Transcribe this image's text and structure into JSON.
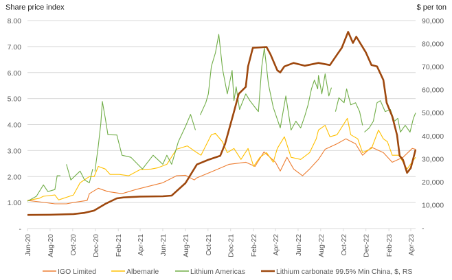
{
  "chart_data": {
    "type": "line",
    "left_axis_title": "Share price index",
    "right_axis_title": "$ per ton",
    "x_domain": [
      "2020-06-01",
      "2023-04-14"
    ],
    "x_ticks": [
      {
        "date": "2020-06-01",
        "label": "Jun-20"
      },
      {
        "date": "2020-08-01",
        "label": "Aug-20"
      },
      {
        "date": "2020-10-01",
        "label": "Oct-20"
      },
      {
        "date": "2020-12-01",
        "label": "Dec-20"
      },
      {
        "date": "2021-02-01",
        "label": "Feb-21"
      },
      {
        "date": "2021-04-01",
        "label": "Apr-21"
      },
      {
        "date": "2021-06-01",
        "label": "Jun-21"
      },
      {
        "date": "2021-08-01",
        "label": "Aug-21"
      },
      {
        "date": "2021-10-01",
        "label": "Oct-21"
      },
      {
        "date": "2021-12-01",
        "label": "Dec-21"
      },
      {
        "date": "2022-02-01",
        "label": "Feb-22"
      },
      {
        "date": "2022-04-01",
        "label": "Apr-22"
      },
      {
        "date": "2022-06-01",
        "label": "Jun-22"
      },
      {
        "date": "2022-08-01",
        "label": "Aug-22"
      },
      {
        "date": "2022-10-01",
        "label": "Oct-22"
      },
      {
        "date": "2022-12-01",
        "label": "Dec-22"
      },
      {
        "date": "2023-02-01",
        "label": "Feb-23"
      },
      {
        "date": "2023-04-01",
        "label": "Apr-23"
      }
    ],
    "y_left": {
      "range": [
        0,
        8
      ],
      "ticks": [
        {
          "value": 0,
          "label": "-"
        },
        {
          "value": 1,
          "label": "1.00"
        },
        {
          "value": 2,
          "label": "2.00"
        },
        {
          "value": 3,
          "label": "3.00"
        },
        {
          "value": 4,
          "label": "4.00"
        },
        {
          "value": 5,
          "label": "5.00"
        },
        {
          "value": 6,
          "label": "6.00"
        },
        {
          "value": 7,
          "label": "7.00"
        },
        {
          "value": 8,
          "label": "8.00"
        }
      ]
    },
    "y_right": {
      "range": [
        0,
        90000
      ],
      "ticks": [
        {
          "value": 0,
          "label": "-"
        },
        {
          "value": 10000,
          "label": "10,000"
        },
        {
          "value": 20000,
          "label": "20,000"
        },
        {
          "value": 30000,
          "label": "30,000"
        },
        {
          "value": 40000,
          "label": "40,000"
        },
        {
          "value": 50000,
          "label": "50,000"
        },
        {
          "value": 60000,
          "label": "60,000"
        },
        {
          "value": 70000,
          "label": "70,000"
        },
        {
          "value": 80000,
          "label": "80,000"
        },
        {
          "value": 90000,
          "label": "90,000"
        }
      ]
    },
    "grid": true,
    "legend_position": "bottom",
    "series": [
      {
        "name": "IGO Limited",
        "color": "#ED7D31",
        "axis": "left",
        "points": [
          [
            "2020-06-01",
            1.08
          ],
          [
            "2020-07-02",
            1.03
          ],
          [
            "2020-08-14",
            0.95
          ],
          [
            "2020-09-14",
            0.95
          ],
          [
            "2020-10-03",
            1.0
          ],
          [
            "2020-11-09",
            1.08
          ],
          [
            "2020-11-15",
            1.34
          ],
          [
            "2020-12-09",
            1.55
          ],
          [
            "2021-01-04",
            1.42
          ],
          [
            "2021-02-11",
            1.34
          ],
          [
            "2021-03-20",
            1.5
          ],
          [
            "2021-04-25",
            1.63
          ],
          [
            "2021-06-01",
            1.76
          ],
          [
            "2021-07-08",
            2.03
          ],
          [
            "2021-08-01",
            2.05
          ],
          [
            "2021-08-25",
            1.87
          ],
          [
            "2021-09-01",
            1.95
          ],
          [
            "2021-10-15",
            2.21
          ],
          [
            "2021-11-27",
            2.47
          ],
          [
            "2022-01-11",
            2.55
          ],
          [
            "2022-02-05",
            2.39
          ],
          [
            "2022-03-01",
            2.95
          ],
          [
            "2022-04-01",
            2.55
          ],
          [
            "2022-04-14",
            2.21
          ],
          [
            "2022-05-02",
            2.74
          ],
          [
            "2022-05-20",
            2.29
          ],
          [
            "2022-06-13",
            2.03
          ],
          [
            "2022-07-02",
            2.29
          ],
          [
            "2022-07-26",
            2.66
          ],
          [
            "2022-08-13",
            3.05
          ],
          [
            "2022-09-14",
            3.26
          ],
          [
            "2022-10-08",
            3.45
          ],
          [
            "2022-11-03",
            3.26
          ],
          [
            "2022-11-22",
            2.82
          ],
          [
            "2022-12-16",
            3.13
          ],
          [
            "2023-01-17",
            2.92
          ],
          [
            "2023-02-10",
            2.55
          ],
          [
            "2023-03-11",
            2.74
          ],
          [
            "2023-04-05",
            3.08
          ],
          [
            "2023-04-14",
            3.05
          ]
        ]
      },
      {
        "name": "Albemarle",
        "color": "#FFC000",
        "axis": "left",
        "points": [
          [
            "2020-06-01",
            1.08
          ],
          [
            "2020-07-02",
            1.16
          ],
          [
            "2020-07-14",
            1.24
          ],
          [
            "2020-08-14",
            1.29
          ],
          [
            "2020-08-24",
            1.1
          ],
          [
            "2020-10-03",
            1.29
          ],
          [
            "2020-10-21",
            1.76
          ],
          [
            "2020-11-15",
            2.0
          ],
          [
            "2020-11-28",
            2.0
          ],
          [
            "2020-12-09",
            2.39
          ],
          [
            "2020-12-28",
            2.29
          ],
          [
            "2021-01-10",
            2.08
          ],
          [
            "2021-02-04",
            2.08
          ],
          [
            "2021-03-01",
            2.03
          ],
          [
            "2021-03-31",
            2.26
          ],
          [
            "2021-05-01",
            2.29
          ],
          [
            "2021-05-19",
            2.34
          ],
          [
            "2021-06-12",
            2.47
          ],
          [
            "2021-07-08",
            3.05
          ],
          [
            "2021-08-06",
            3.18
          ],
          [
            "2021-09-01",
            2.92
          ],
          [
            "2021-09-12",
            2.82
          ],
          [
            "2021-10-10",
            3.61
          ],
          [
            "2021-10-21",
            3.66
          ],
          [
            "2021-11-09",
            3.34
          ],
          [
            "2021-11-22",
            2.92
          ],
          [
            "2021-12-10",
            3.08
          ],
          [
            "2021-12-29",
            2.66
          ],
          [
            "2022-01-17",
            3.08
          ],
          [
            "2022-02-01",
            2.39
          ],
          [
            "2022-02-18",
            2.74
          ],
          [
            "2022-03-08",
            2.92
          ],
          [
            "2022-03-26",
            2.55
          ],
          [
            "2022-04-06",
            3.08
          ],
          [
            "2022-04-25",
            3.53
          ],
          [
            "2022-05-13",
            2.74
          ],
          [
            "2022-06-08",
            2.66
          ],
          [
            "2022-07-02",
            2.92
          ],
          [
            "2022-07-20",
            3.45
          ],
          [
            "2022-07-26",
            3.79
          ],
          [
            "2022-08-13",
            3.97
          ],
          [
            "2022-08-26",
            3.53
          ],
          [
            "2022-09-14",
            3.61
          ],
          [
            "2022-10-12",
            4.24
          ],
          [
            "2022-10-21",
            3.61
          ],
          [
            "2022-11-09",
            3.45
          ],
          [
            "2022-11-22",
            2.92
          ],
          [
            "2022-12-16",
            3.08
          ],
          [
            "2023-01-04",
            3.79
          ],
          [
            "2023-01-17",
            3.45
          ],
          [
            "2023-01-28",
            3.34
          ],
          [
            "2023-02-10",
            2.82
          ],
          [
            "2023-02-28",
            2.82
          ],
          [
            "2023-03-11",
            2.55
          ],
          [
            "2023-03-22",
            2.29
          ],
          [
            "2023-04-14",
            2.74
          ]
        ]
      },
      {
        "name": "Lithium Americas",
        "color": "#70AD47",
        "axis": "left",
        "points": [
          [
            "2020-06-01",
            1.05
          ],
          [
            "2020-06-25",
            1.24
          ],
          [
            "2020-07-14",
            1.68
          ],
          [
            "2020-07-26",
            1.42
          ],
          [
            "2020-08-14",
            1.5
          ],
          [
            "2020-08-20",
            2.03
          ],
          [
            "2020-08-29",
            2.03
          ],
          null,
          [
            "2020-09-14",
            2.47
          ],
          [
            "2020-09-26",
            1.87
          ],
          [
            "2020-10-21",
            2.21
          ],
          [
            "2020-11-02",
            1.87
          ],
          [
            "2020-11-15",
            1.76
          ],
          [
            "2020-11-24",
            2.29
          ],
          null,
          [
            "2020-11-30",
            2.2
          ],
          [
            "2020-12-09",
            3.18
          ],
          [
            "2020-12-16",
            4.05
          ],
          [
            "2020-12-20",
            4.89
          ],
          [
            "2020-12-28",
            4.24
          ],
          [
            "2021-01-04",
            3.61
          ],
          [
            "2021-01-28",
            3.6
          ],
          [
            "2021-02-11",
            2.82
          ],
          [
            "2021-03-07",
            2.74
          ],
          [
            "2021-03-20",
            2.55
          ],
          [
            "2021-04-07",
            2.29
          ],
          [
            "2021-05-06",
            2.82
          ],
          [
            "2021-06-01",
            2.47
          ],
          [
            "2021-06-12",
            2.82
          ],
          [
            "2021-06-25",
            2.47
          ],
          [
            "2021-07-13",
            3.34
          ],
          [
            "2021-08-01",
            3.92
          ],
          [
            "2021-08-15",
            4.39
          ],
          [
            "2021-08-28",
            3.79
          ],
          null,
          [
            "2021-09-10",
            4.37
          ],
          [
            "2021-09-25",
            4.84
          ],
          [
            "2021-10-02",
            5.18
          ],
          [
            "2021-10-10",
            6.24
          ],
          [
            "2021-10-21",
            6.76
          ],
          [
            "2021-10-30",
            7.47
          ],
          [
            "2021-11-07",
            6.42
          ],
          [
            "2021-11-09",
            6.16
          ],
          [
            "2021-11-22",
            5.18
          ],
          [
            "2021-12-05",
            6.08
          ],
          [
            "2021-12-10",
            4.92
          ],
          [
            "2021-12-16",
            5.45
          ],
          [
            "2021-12-25",
            4.58
          ],
          [
            "2022-01-11",
            5.18
          ],
          [
            "2022-01-22",
            4.92
          ],
          [
            "2022-02-05",
            4.66
          ],
          [
            "2022-02-14",
            4.5
          ],
          [
            "2022-02-23",
            6.24
          ],
          [
            "2022-03-02",
            6.95
          ],
          [
            "2022-03-13",
            5.55
          ],
          [
            "2022-03-26",
            4.66
          ],
          [
            "2022-04-14",
            3.87
          ],
          [
            "2022-04-29",
            5.1
          ],
          [
            "2022-05-13",
            3.79
          ],
          [
            "2022-05-26",
            4.13
          ],
          [
            "2022-06-08",
            3.87
          ],
          [
            "2022-06-19",
            4.32
          ],
          [
            "2022-06-28",
            4.76
          ],
          [
            "2022-07-07",
            5.37
          ],
          [
            "2022-07-15",
            5.71
          ],
          [
            "2022-07-24",
            5.37
          ],
          [
            "2022-07-26",
            5.89
          ],
          [
            "2022-08-04",
            5.18
          ],
          [
            "2022-08-13",
            5.95
          ],
          [
            "2022-08-23",
            5.1
          ],
          [
            "2022-08-30",
            5.42
          ],
          null,
          [
            "2022-09-10",
            4.5
          ],
          [
            "2022-09-19",
            5.03
          ],
          [
            "2022-10-03",
            4.84
          ],
          [
            "2022-10-10",
            5.37
          ],
          [
            "2022-10-21",
            4.76
          ],
          [
            "2022-11-03",
            4.84
          ],
          [
            "2022-11-14",
            4.5
          ],
          [
            "2022-11-22",
            3.97
          ],
          null,
          [
            "2022-11-27",
            3.71
          ],
          [
            "2022-12-10",
            3.87
          ],
          [
            "2022-12-21",
            4.13
          ],
          [
            "2022-12-31",
            4.84
          ],
          [
            "2023-01-09",
            4.92
          ],
          [
            "2023-01-22",
            4.5
          ],
          [
            "2023-02-05",
            4.58
          ],
          [
            "2023-02-16",
            4.13
          ],
          [
            "2023-02-25",
            4.24
          ],
          [
            "2023-03-04",
            3.71
          ],
          [
            "2023-03-17",
            3.97
          ],
          [
            "2023-03-30",
            3.71
          ],
          [
            "2023-04-08",
            4.24
          ],
          [
            "2023-04-14",
            4.45
          ]
        ]
      },
      {
        "name": "Lithium carbonate 99.5% Min China, $, RS",
        "color": "#9E480E",
        "axis": "right",
        "points": [
          [
            "2020-06-01",
            5600
          ],
          [
            "2020-08-01",
            5700
          ],
          [
            "2020-10-03",
            6000
          ],
          [
            "2020-11-01",
            6500
          ],
          [
            "2020-11-28",
            7500
          ],
          [
            "2020-12-28",
            10400
          ],
          [
            "2021-01-28",
            12800
          ],
          [
            "2021-02-15",
            13200
          ],
          [
            "2021-04-01",
            13600
          ],
          [
            "2021-06-01",
            13700
          ],
          [
            "2021-06-25",
            14000
          ],
          [
            "2021-08-01",
            19400
          ],
          [
            "2021-09-01",
            27500
          ],
          [
            "2021-10-01",
            29500
          ],
          [
            "2021-11-03",
            31300
          ],
          [
            "2021-11-16",
            36400
          ],
          [
            "2021-12-10",
            50400
          ],
          [
            "2021-12-23",
            58200
          ],
          [
            "2022-01-11",
            61200
          ],
          [
            "2022-01-17",
            70100
          ],
          [
            "2022-01-30",
            78200
          ],
          [
            "2022-03-08",
            78500
          ],
          [
            "2022-03-19",
            75200
          ],
          [
            "2022-04-06",
            68400
          ],
          [
            "2022-04-14",
            67500
          ],
          [
            "2022-04-25",
            70100
          ],
          [
            "2022-05-20",
            71600
          ],
          [
            "2022-06-19",
            70400
          ],
          [
            "2022-07-26",
            71600
          ],
          [
            "2022-08-26",
            70700
          ],
          [
            "2022-09-14",
            75200
          ],
          [
            "2022-09-27",
            78200
          ],
          [
            "2022-10-14",
            85100
          ],
          [
            "2022-10-27",
            80300
          ],
          [
            "2022-11-05",
            83000
          ],
          [
            "2022-12-01",
            76100
          ],
          [
            "2022-12-16",
            70700
          ],
          [
            "2022-12-31",
            70100
          ],
          [
            "2023-01-17",
            64200
          ],
          [
            "2023-01-26",
            54300
          ],
          [
            "2023-02-10",
            48400
          ],
          [
            "2023-02-23",
            40300
          ],
          [
            "2023-03-02",
            31300
          ],
          [
            "2023-03-11",
            29500
          ],
          [
            "2023-03-22",
            23900
          ],
          [
            "2023-04-01",
            26000
          ],
          [
            "2023-04-14",
            34000
          ]
        ]
      }
    ]
  }
}
